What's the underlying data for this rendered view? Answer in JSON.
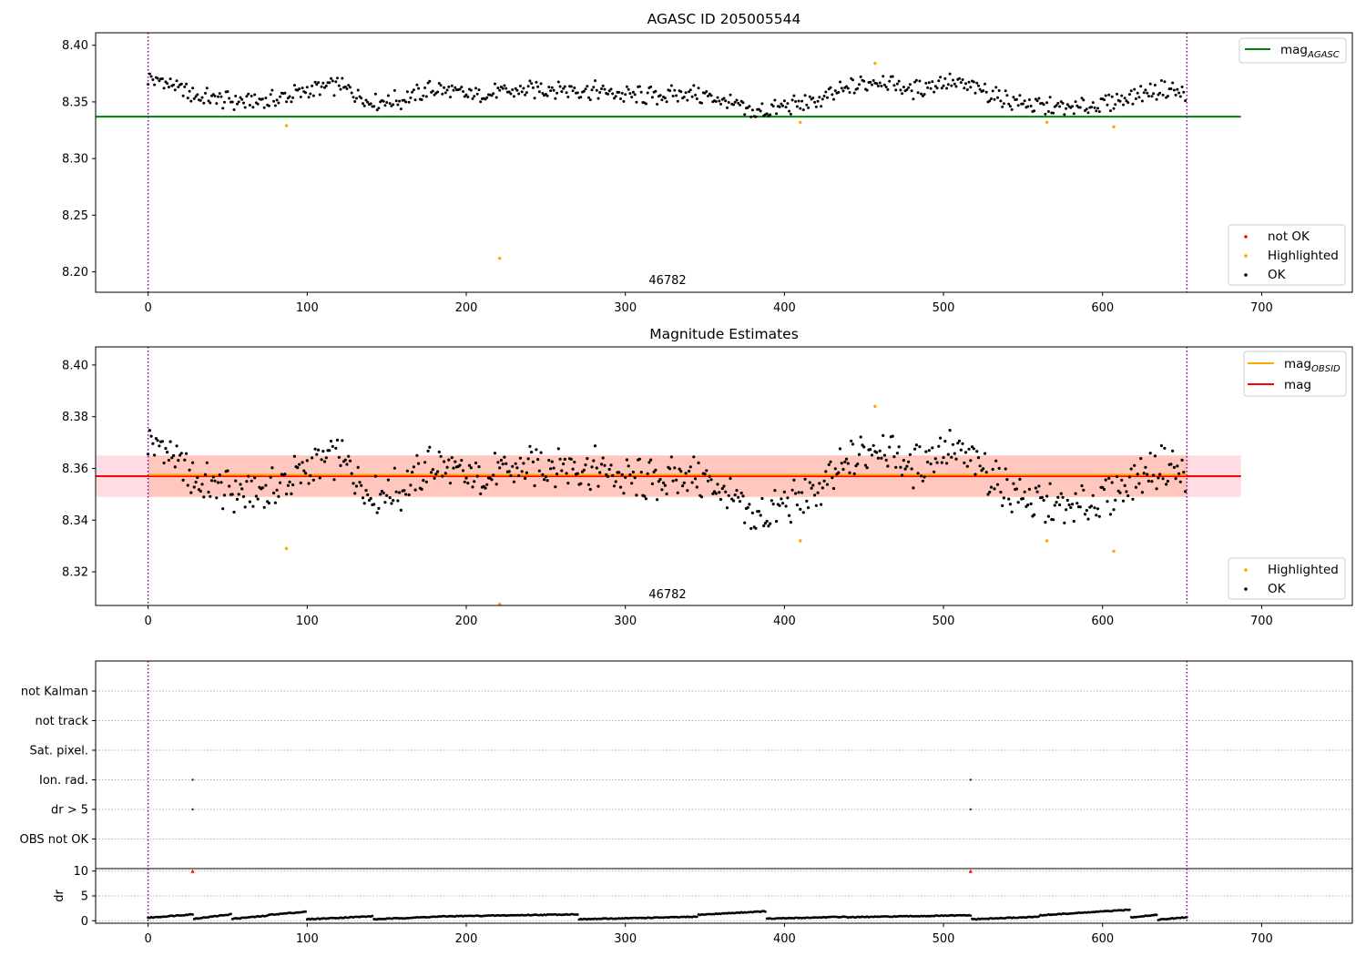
{
  "figure": {
    "agasc_id_title": "AGASC ID 205005544",
    "obsid_label": "46782"
  },
  "colors": {
    "ok": "#000000",
    "highlighted": "#ffa500",
    "not_ok": "#ff0000",
    "mag_agasc": "#008000",
    "mag_obsid": "#ffa500",
    "mag": "#ff0000",
    "band_outer": "#ffc0cb",
    "band_inner": "#ffa07a",
    "obs_boundary": "#800080"
  },
  "chart_data": [
    {
      "type": "scatter",
      "title": "AGASC ID 205005544",
      "xlim": [
        -33,
        757
      ],
      "ylim": [
        8.182,
        8.411
      ],
      "xticks": [
        "0",
        "100",
        "200",
        "300",
        "400",
        "500",
        "600",
        "700"
      ],
      "yticks": [
        "8.20",
        "8.25",
        "8.30",
        "8.35",
        "8.40"
      ],
      "text_annotation": "46782",
      "obs_boundaries": [
        0,
        653
      ],
      "hlines": [
        {
          "name": "mag_AGASC",
          "y": 8.337,
          "x_range": [
            -33,
            687
          ]
        }
      ],
      "legend_lines": {
        "placement": "top-right",
        "entries": [
          {
            "base": "mag",
            "sub": "AGASC"
          }
        ]
      },
      "legend_points": {
        "placement": "bottom-right",
        "entries": [
          "not OK",
          "Highlighted",
          "OK"
        ]
      },
      "series": [
        {
          "name": "OK",
          "n": 653,
          "x_range": [
            0,
            653
          ],
          "trend": "~8.337-8.376 with slow wave: high near x=0, 120, 290, 460, 500, 640; dips near x=60, 150, 380, 570"
        },
        {
          "name": "Highlighted",
          "x": [
            87,
            221,
            410,
            457,
            565,
            607
          ],
          "y": [
            8.329,
            8.212,
            8.332,
            8.384,
            8.332,
            8.328
          ]
        }
      ]
    },
    {
      "type": "scatter",
      "title": "Magnitude Estimates",
      "xlim": [
        -33,
        757
      ],
      "ylim": [
        8.307,
        8.407
      ],
      "xticks": [
        "0",
        "100",
        "200",
        "300",
        "400",
        "500",
        "600",
        "700"
      ],
      "yticks": [
        "8.32",
        "8.34",
        "8.36",
        "8.38",
        "8.40"
      ],
      "text_annotation": "46782",
      "obs_boundaries": [
        0,
        653
      ],
      "hlines": [
        {
          "name": "mag",
          "y": 8.357,
          "x_range": [
            -33,
            687
          ]
        },
        {
          "name": "mag_OBSID",
          "y": 8.357,
          "x_range": [
            0,
            653
          ]
        }
      ],
      "bands": [
        {
          "name": "mag range",
          "y_range": [
            8.349,
            8.365
          ],
          "x_range": [
            -33,
            687
          ]
        },
        {
          "name": "mag_OBSID range",
          "y_range": [
            8.349,
            8.365
          ],
          "x_range": [
            0,
            653
          ]
        }
      ],
      "legend_lines": {
        "placement": "top-right",
        "entries": [
          {
            "base": "mag",
            "sub": "OBSID"
          },
          {
            "base": "mag",
            "sub": ""
          }
        ]
      },
      "legend_points": {
        "placement": "bottom-right",
        "entries": [
          "Highlighted",
          "OK"
        ]
      },
      "series": [
        {
          "name": "OK",
          "n": 653,
          "x_range": [
            0,
            653
          ],
          "note": "same points as the panel above, expanded y scale"
        },
        {
          "name": "Highlighted",
          "x": [
            87,
            221,
            410,
            457,
            565,
            607
          ],
          "y": [
            8.329,
            8.3075,
            8.332,
            8.384,
            8.332,
            8.328
          ]
        }
      ]
    },
    {
      "type": "scatter",
      "title": "",
      "xlim": [
        -33,
        757
      ],
      "categories": [
        "not Kalman",
        "not track",
        "Sat. pixel.",
        "Ion. rad.",
        "dr > 5",
        "OBS not OK"
      ],
      "flags": [
        {
          "category": "Ion. rad.",
          "x": [
            28,
            517
          ]
        },
        {
          "category": "dr > 5",
          "x": [
            28,
            517
          ]
        }
      ],
      "obs_boundaries": [
        0,
        653
      ]
    },
    {
      "type": "scatter",
      "title": "",
      "ylabel": "dr",
      "xlim": [
        -33,
        757
      ],
      "ylim": [
        -0.5,
        10.5
      ],
      "xticks": [
        "0",
        "100",
        "200",
        "300",
        "400",
        "500",
        "600",
        "700"
      ],
      "yticks": [
        "0",
        "5",
        "10"
      ],
      "obs_boundaries": [
        0,
        653
      ],
      "series": [
        {
          "name": "dr",
          "n": 653,
          "x_range": [
            0,
            653
          ],
          "y_range": [
            0.2,
            2.2
          ],
          "trend": "segments alternating between ~0.5 and ~1.5"
        },
        {
          "name": "not OK",
          "x": [
            28,
            517
          ],
          "y": [
            10,
            10
          ]
        }
      ]
    }
  ]
}
